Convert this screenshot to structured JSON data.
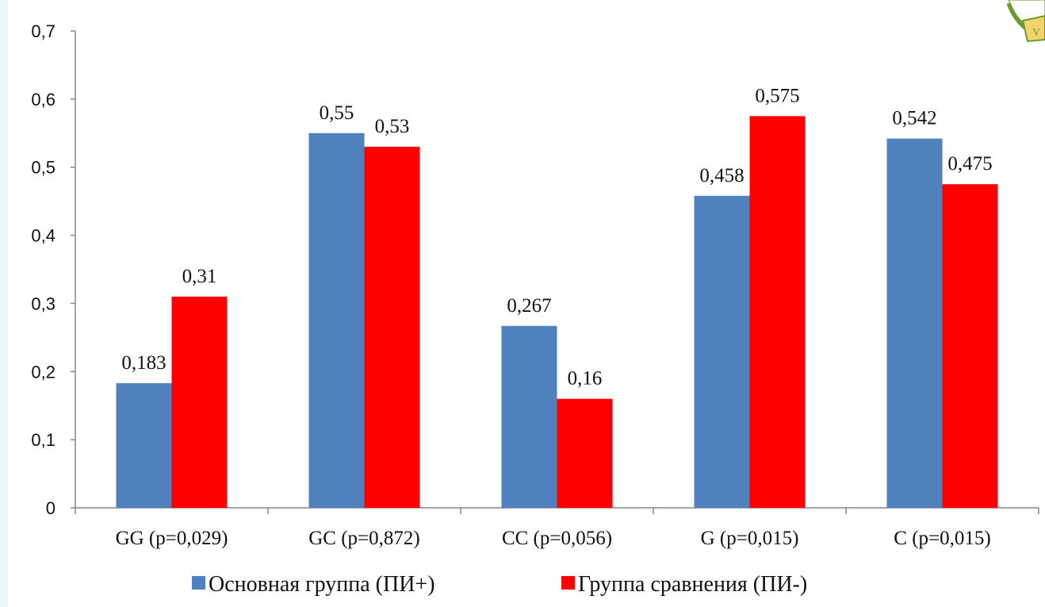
{
  "chart_data": {
    "type": "bar",
    "categories": [
      "GG (p=0,029)",
      "GC (p=0,872)",
      "CC (p=0,056)",
      "G (p=0,015)",
      "C (p=0,015)"
    ],
    "series": [
      {
        "name": "Основная группа (ПИ+)",
        "color": "#4f81bd",
        "values": [
          0.183,
          0.55,
          0.267,
          0.458,
          0.542
        ],
        "labels": [
          "0,183",
          "0,55",
          "0,267",
          "0,458",
          "0,542"
        ]
      },
      {
        "name": "Группа сравнения (ПИ-)",
        "color": "#ff0000",
        "values": [
          0.31,
          0.53,
          0.16,
          0.575,
          0.475
        ],
        "labels": [
          "0,31",
          "0,53",
          "0,16",
          "0,575",
          "0,475"
        ]
      }
    ],
    "y_ticks": [
      "0",
      "0,1",
      "0,2",
      "0,3",
      "0,4",
      "0,5",
      "0,6",
      "0,7"
    ],
    "ylim": [
      0,
      0.7
    ],
    "grid": false,
    "legend_position": "bottom"
  },
  "logo": {
    "icon": "laurel-emblem-icon",
    "color": "#8ab83a"
  }
}
